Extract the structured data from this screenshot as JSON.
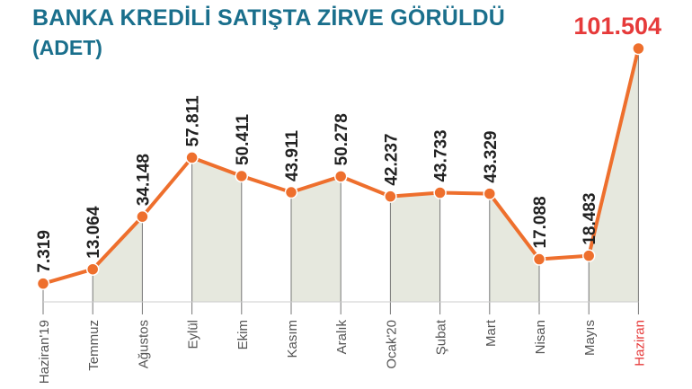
{
  "title": "BANKA KREDİLİ SATIŞTA ZİRVE GÖRÜLDÜ",
  "subtitle": "(ADET)",
  "colors": {
    "title": "#1a6f8c",
    "line": "#ee6f2d",
    "highlight": "#e63a3a",
    "shade": "#e6e8de",
    "tick": "#555555",
    "label": "#222222"
  },
  "chart_data": {
    "type": "line",
    "title": "BANKA KREDİLİ SATIŞTA ZİRVE GÖRÜLDÜ",
    "subtitle": "(ADET)",
    "categories": [
      "Haziran'19",
      "Temmuz",
      "Ağustos",
      "Eylül",
      "Ekim",
      "Kasım",
      "Aralık",
      "Ocak'20",
      "Şubat",
      "Mart",
      "Nisan",
      "Mayıs",
      "Haziran"
    ],
    "values": [
      7319,
      13064,
      34148,
      57811,
      50411,
      43911,
      50278,
      42237,
      43733,
      43329,
      17088,
      18483,
      101504
    ],
    "value_labels": [
      "7.319",
      "13.064",
      "34.148",
      "57.811",
      "50.411",
      "43.911",
      "50.278",
      "42.237",
      "43.733",
      "43.329",
      "17.088",
      "18.483",
      "101.504"
    ],
    "highlight_index": 12,
    "ylim": [
      0,
      105000
    ],
    "grid": false,
    "legend": "none"
  }
}
